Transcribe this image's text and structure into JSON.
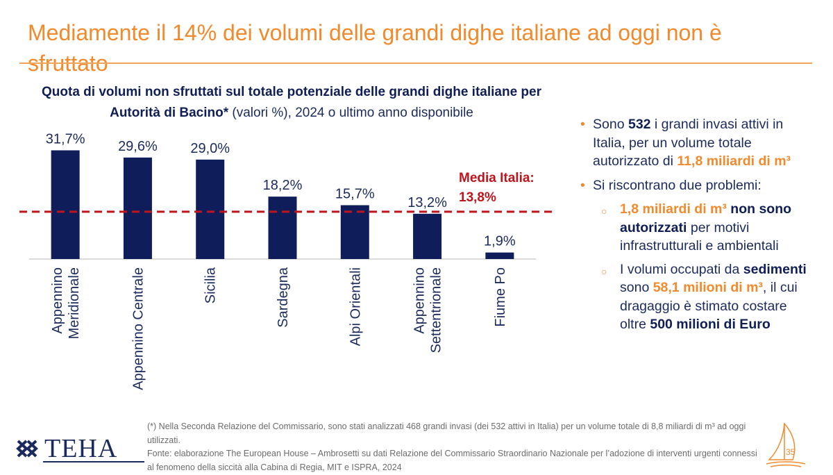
{
  "header": {
    "title": "Mediamente il 14% dei volumi delle grandi dighe italiane ad oggi non è sfruttato"
  },
  "chart_data": {
    "type": "bar",
    "title_bold": "Quota di volumi non sfruttati sul totale potenziale delle grandi dighe italiane per Autorità di Bacino*",
    "title_rest": " (valori %), 2024 o ultimo anno disponibile",
    "categories": [
      [
        "Appennino",
        "Meridionale"
      ],
      [
        "Appennino Centrale"
      ],
      [
        "Sicilia"
      ],
      [
        "Sardegna"
      ],
      [
        "Alpi Orientali"
      ],
      [
        "Appennino",
        "Settentrionale"
      ],
      [
        "Fiume Po"
      ]
    ],
    "values": [
      31.7,
      29.6,
      29.0,
      18.2,
      15.7,
      13.2,
      1.9
    ],
    "value_labels": [
      "31,7%",
      "29,6%",
      "29,0%",
      "18,2%",
      "15,7%",
      "13,2%",
      "1,9%"
    ],
    "ylim": [
      0,
      32
    ],
    "reference_line": {
      "value": 13.8,
      "label_line1": "Media Italia:",
      "label_line2": "13,8%"
    },
    "colors": {
      "bar": "#0f1e5a",
      "reference": "#c0141c",
      "axis": "#cfcfcf",
      "label": "#1b2a5c"
    }
  },
  "bullets": {
    "b1": {
      "pre": "Sono ",
      "n1": "532",
      "mid": " i grandi invasi attivi in Italia, per un volume totale autorizzato di ",
      "vol": "11,8 miliardi di m³"
    },
    "b2": {
      "text": "Si riscontrano due problemi:"
    },
    "s1": {
      "or": "1,8 miliardi di m³",
      "nv": " non sono autorizzati",
      "rest": " per motivi infrastrutturali e ambientali"
    },
    "s2": {
      "pre": "I volumi occupati da ",
      "nv1": "sedimenti",
      "mid": " sono ",
      "or": "58,1 milioni di m³",
      "mid2": ", il cui dragaggio è stimato costare oltre ",
      "nv2": "500 milioni di Euro"
    }
  },
  "footnote": {
    "line1": "(*) Nella Seconda Relazione del Commissario, sono stati analizzati 468 grandi invasi (dei 532 attivi in Italia) per un volume totale di 8,8 miliardi di m³ ad oggi utilizzati.",
    "line2": "Fonte: elaborazione The European House – Ambrosetti su dati Relazione del Commissario Straordinario Nazionale per l’adozione di interventi urgenti connessi al fenomeno della siccità alla Cabina di Regia, MIT e ISPRA, 2024"
  },
  "logo": {
    "text": "TEHA"
  },
  "page": {
    "number": "35"
  }
}
